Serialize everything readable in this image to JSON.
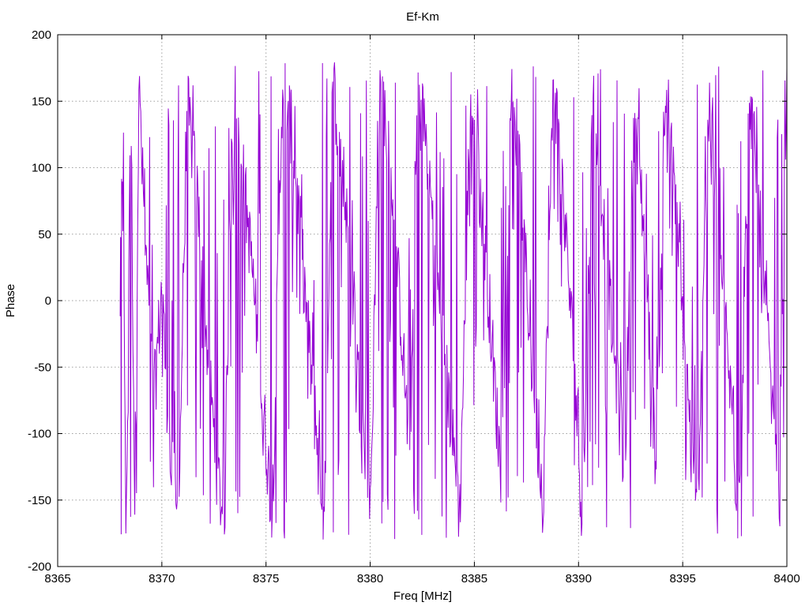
{
  "chart_data": {
    "type": "line",
    "title": "Ef-Km",
    "xlabel": "Freq [MHz]",
    "ylabel": "Phase",
    "xlim": [
      8365,
      8400
    ],
    "ylim": [
      -200,
      200
    ],
    "xticks": [
      8365,
      8370,
      8375,
      8380,
      8385,
      8390,
      8395,
      8400
    ],
    "yticks": [
      -200,
      -150,
      -100,
      -50,
      0,
      50,
      100,
      150,
      200
    ],
    "grid": true,
    "line_color": "#9400d3",
    "series": [
      {
        "x_start": 8368.0,
        "x_end": 8400.0,
        "wrap_period_mhz": 2.4,
        "phase_range": [
          -180,
          180
        ],
        "points": [
          [
            8368.0,
            0
          ],
          [
            8368.1,
            108
          ],
          [
            8368.3,
            -170
          ],
          [
            8368.5,
            175
          ],
          [
            8368.7,
            -155
          ],
          [
            8368.9,
            160
          ],
          [
            8369.2,
            40
          ],
          [
            8369.6,
            -80
          ],
          [
            8370.0,
            10
          ],
          [
            8370.4,
            -120
          ],
          [
            8370.8,
            -170
          ],
          [
            8371.2,
            150
          ],
          [
            8371.7,
            80
          ],
          [
            8372.2,
            -40
          ],
          [
            8372.6,
            -120
          ],
          [
            8373.0,
            -170
          ],
          [
            8373.4,
            170
          ],
          [
            8373.8,
            110
          ],
          [
            8374.3,
            30
          ],
          [
            8374.8,
            -70
          ],
          [
            8375.3,
            -160
          ],
          [
            8375.8,
            170
          ],
          [
            8376.3,
            120
          ],
          [
            8376.8,
            20
          ],
          [
            8377.3,
            -80
          ],
          [
            8377.8,
            -175
          ],
          [
            8378.2,
            170
          ],
          [
            8378.7,
            90
          ],
          [
            8379.2,
            0
          ],
          [
            8379.6,
            -100
          ],
          [
            8380.0,
            -150
          ],
          [
            8380.5,
            175
          ],
          [
            8381.0,
            90
          ],
          [
            8381.5,
            -20
          ],
          [
            8381.9,
            -120
          ],
          [
            8382.3,
            175
          ],
          [
            8382.8,
            100
          ],
          [
            8383.3,
            0
          ],
          [
            8383.8,
            -80
          ],
          [
            8384.3,
            -160
          ],
          [
            8384.8,
            150
          ],
          [
            8385.3,
            80
          ],
          [
            8385.8,
            -20
          ],
          [
            8386.3,
            -140
          ],
          [
            8386.8,
            170
          ],
          [
            8387.3,
            70
          ],
          [
            8387.8,
            -60
          ],
          [
            8388.3,
            -150
          ],
          [
            8388.8,
            170
          ],
          [
            8389.3,
            70
          ],
          [
            8389.8,
            -50
          ],
          [
            8390.2,
            -170
          ],
          [
            8390.7,
            160
          ],
          [
            8391.2,
            60
          ],
          [
            8391.7,
            -40
          ],
          [
            8392.2,
            -130
          ],
          [
            8392.7,
            150
          ],
          [
            8393.2,
            40
          ],
          [
            8393.7,
            -120
          ],
          [
            8394.2,
            160
          ],
          [
            8394.7,
            60
          ],
          [
            8395.2,
            -60
          ],
          [
            8395.7,
            -170
          ],
          [
            8396.2,
            150
          ],
          [
            8396.7,
            60
          ],
          [
            8397.2,
            -50
          ],
          [
            8397.7,
            -170
          ],
          [
            8398.2,
            160
          ],
          [
            8398.7,
            60
          ],
          [
            8399.2,
            -60
          ],
          [
            8399.6,
            -160
          ],
          [
            8400.0,
            175
          ]
        ]
      }
    ]
  }
}
